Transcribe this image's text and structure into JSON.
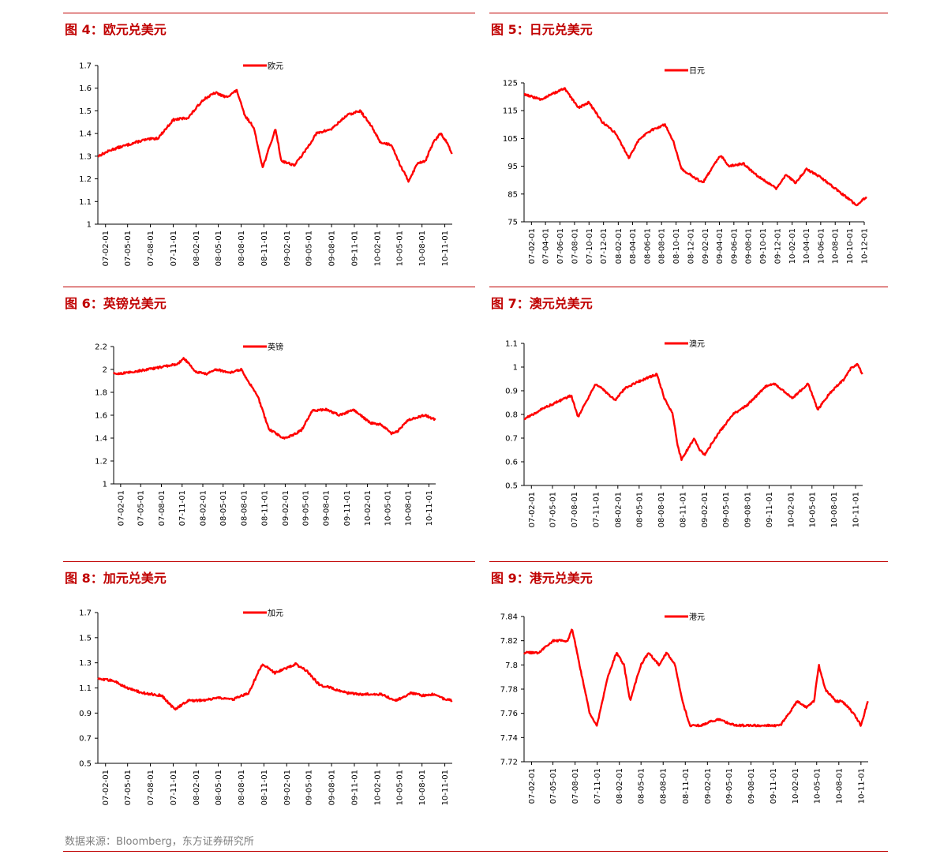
{
  "source_note": "数据来源：Bloomberg，东方证券研究所",
  "line_color": "#ff0000",
  "title_color": "#c00000",
  "chart_data": [
    {
      "type": "line",
      "title": "图 4：欧元兑美元",
      "legend": "欧元",
      "legend_position": "top-center",
      "ylim": [
        1,
        1.7
      ],
      "yticks": [
        "1",
        "1.1",
        "1.2",
        "1.3",
        "1.4",
        "1.5",
        "1.6",
        "1.7"
      ],
      "xticks": [
        "07-02-01",
        "07-05-01",
        "07-08-01",
        "07-11-01",
        "08-02-01",
        "08-05-01",
        "08-08-01",
        "08-11-01",
        "09-02-01",
        "09-05-01",
        "09-08-01",
        "09-11-01",
        "10-02-01",
        "10-05-01",
        "10-08-01",
        "10-11-01"
      ],
      "x": [
        "2007-01-01",
        "2007-03-01",
        "2007-05-01",
        "2007-07-01",
        "2007-09-01",
        "2007-11-01",
        "2008-01-01",
        "2008-03-01",
        "2008-04-20",
        "2008-06-01",
        "2008-07-15",
        "2008-08-15",
        "2008-09-20",
        "2008-10-27",
        "2008-12-18",
        "2009-01-10",
        "2009-03-04",
        "2009-04-15",
        "2009-06-01",
        "2009-08-01",
        "2009-10-01",
        "2009-11-25",
        "2010-01-10",
        "2010-02-15",
        "2010-04-01",
        "2010-05-01",
        "2010-06-07",
        "2010-07-15",
        "2010-08-15",
        "2010-09-15",
        "2010-10-15",
        "2010-11-10",
        "2010-11-30"
      ],
      "values": [
        1.3,
        1.33,
        1.35,
        1.37,
        1.38,
        1.46,
        1.47,
        1.55,
        1.58,
        1.56,
        1.59,
        1.48,
        1.43,
        1.25,
        1.42,
        1.28,
        1.26,
        1.32,
        1.4,
        1.42,
        1.48,
        1.5,
        1.43,
        1.36,
        1.35,
        1.27,
        1.19,
        1.27,
        1.28,
        1.36,
        1.4,
        1.36,
        1.31
      ]
    },
    {
      "type": "line",
      "title": "图 5：日元兑美元",
      "legend": "日元",
      "legend_position": "top-center",
      "ylim": [
        75,
        125
      ],
      "yticks": [
        "75",
        "85",
        "95",
        "105",
        "115",
        "125"
      ],
      "xticks": [
        "07-02-01",
        "07-04-01",
        "07-06-01",
        "07-08-01",
        "07-10-01",
        "07-12-01",
        "08-02-01",
        "08-04-01",
        "08-06-01",
        "08-08-01",
        "08-10-01",
        "08-12-01",
        "09-02-01",
        "09-04-01",
        "09-06-01",
        "09-08-01",
        "09-10-01",
        "09-12-01",
        "10-02-01",
        "10-04-01",
        "10-06-01",
        "10-08-01",
        "10-10-01",
        "10-12-01"
      ],
      "x": [
        "2007-01-01",
        "2007-03-10",
        "2007-06-20",
        "2007-08-17",
        "2007-10-01",
        "2007-11-25",
        "2008-01-20",
        "2008-03-17",
        "2008-05-01",
        "2008-06-20",
        "2008-08-15",
        "2008-09-20",
        "2008-10-24",
        "2008-12-17",
        "2009-01-21",
        "2009-04-06",
        "2009-05-10",
        "2009-07-10",
        "2009-09-01",
        "2009-11-27",
        "2010-01-08",
        "2010-02-15",
        "2010-04-02",
        "2010-06-01",
        "2010-08-15",
        "2010-09-15",
        "2010-10-30",
        "2010-12-10"
      ],
      "values": [
        121,
        119,
        123,
        116,
        118,
        111,
        107,
        98,
        105,
        108,
        110,
        104,
        94,
        91,
        89,
        99,
        95,
        96,
        92,
        87,
        92,
        89,
        94,
        91,
        86,
        84,
        81,
        84
      ]
    },
    {
      "type": "line",
      "title": "图 6：英镑兑美元",
      "legend": "英镑",
      "legend_position": "top-center",
      "ylim": [
        1,
        2.2
      ],
      "yticks": [
        "1",
        "1.2",
        "1.4",
        "1.6",
        "1.8",
        "2",
        "2.2"
      ],
      "xticks": [
        "07-02-01",
        "07-05-01",
        "07-08-01",
        "07-11-01",
        "08-02-01",
        "08-05-01",
        "08-08-01",
        "08-11-01",
        "09-02-01",
        "09-05-01",
        "09-08-01",
        "09-11-01",
        "10-02-01",
        "10-05-01",
        "10-08-01",
        "10-11-01"
      ],
      "x": [
        "2007-01-01",
        "2007-03-01",
        "2007-06-01",
        "2007-08-01",
        "2007-10-15",
        "2007-11-08",
        "2008-01-01",
        "2008-02-15",
        "2008-04-01",
        "2008-06-01",
        "2008-07-20",
        "2008-08-20",
        "2008-10-01",
        "2008-11-20",
        "2009-01-23",
        "2009-03-01",
        "2009-04-15",
        "2009-06-01",
        "2009-08-01",
        "2009-10-01",
        "2009-12-01",
        "2010-02-15",
        "2010-04-01",
        "2010-05-20",
        "2010-06-15",
        "2010-08-01",
        "2010-10-15",
        "2010-11-30"
      ],
      "values": [
        1.96,
        1.97,
        2.0,
        2.02,
        2.05,
        2.1,
        1.98,
        1.96,
        2.0,
        1.97,
        2.0,
        1.9,
        1.77,
        1.48,
        1.4,
        1.42,
        1.47,
        1.64,
        1.65,
        1.6,
        1.65,
        1.53,
        1.52,
        1.44,
        1.46,
        1.56,
        1.6,
        1.56
      ]
    },
    {
      "type": "line",
      "title": "图 7：澳元兑美元",
      "legend": "澳元",
      "legend_position": "top-center",
      "ylim": [
        0.5,
        1.1
      ],
      "yticks": [
        "0.5",
        "0.6",
        "0.7",
        "0.8",
        "0.9",
        "1",
        "1.1"
      ],
      "xticks": [
        "07-02-01",
        "07-05-01",
        "07-08-01",
        "07-11-01",
        "08-02-01",
        "08-05-01",
        "08-08-01",
        "08-11-01",
        "09-02-01",
        "09-05-01",
        "09-08-01",
        "09-11-01",
        "10-02-01",
        "10-05-01",
        "10-08-01",
        "10-11-01"
      ],
      "x": [
        "2007-01-01",
        "2007-04-01",
        "2007-07-20",
        "2007-08-17",
        "2007-10-31",
        "2008-01-22",
        "2008-03-01",
        "2008-05-01",
        "2008-07-15",
        "2008-08-15",
        "2008-09-20",
        "2008-10-10",
        "2008-10-27",
        "2008-12-20",
        "2009-01-10",
        "2009-02-02",
        "2009-04-01",
        "2009-06-01",
        "2009-08-01",
        "2009-10-20",
        "2009-11-25",
        "2010-01-10",
        "2010-02-08",
        "2010-04-15",
        "2010-05-25",
        "2010-07-15",
        "2010-09-15",
        "2010-10-15",
        "2010-11-10",
        "2010-11-30"
      ],
      "values": [
        0.78,
        0.83,
        0.88,
        0.79,
        0.93,
        0.86,
        0.91,
        0.94,
        0.97,
        0.87,
        0.8,
        0.67,
        0.61,
        0.7,
        0.65,
        0.63,
        0.72,
        0.8,
        0.84,
        0.92,
        0.93,
        0.89,
        0.87,
        0.93,
        0.82,
        0.89,
        0.95,
        1.0,
        1.01,
        0.97
      ]
    },
    {
      "type": "line",
      "title": "图 8：加元兑美元",
      "legend": "加元",
      "legend_position": "top-center",
      "ylim": [
        0.5,
        1.7
      ],
      "yticks": [
        "0.5",
        "0.7",
        "0.9",
        "1.1",
        "1.3",
        "1.5",
        "1.7"
      ],
      "xticks": [
        "07-02-01",
        "07-05-01",
        "07-08-01",
        "07-11-01",
        "08-02-01",
        "08-05-01",
        "08-08-01",
        "08-11-01",
        "09-02-01",
        "09-05-01",
        "09-08-01",
        "09-11-01",
        "10-02-01",
        "10-05-01",
        "10-08-01",
        "10-11-01"
      ],
      "x": [
        "2007-01-01",
        "2007-03-01",
        "2007-05-01",
        "2007-07-01",
        "2007-09-15",
        "2007-11-07",
        "2008-01-01",
        "2008-03-01",
        "2008-05-01",
        "2008-07-01",
        "2008-09-01",
        "2008-10-15",
        "2008-10-27",
        "2008-12-15",
        "2009-03-09",
        "2009-04-20",
        "2009-06-15",
        "2009-08-01",
        "2009-10-01",
        "2009-12-01",
        "2010-02-15",
        "2010-04-20",
        "2010-06-15",
        "2010-08-01",
        "2010-09-15",
        "2010-11-01",
        "2010-11-30"
      ],
      "values": [
        1.17,
        1.16,
        1.1,
        1.06,
        1.04,
        0.93,
        1.0,
        1.0,
        1.02,
        1.01,
        1.06,
        1.25,
        1.29,
        1.22,
        1.29,
        1.24,
        1.12,
        1.1,
        1.06,
        1.05,
        1.05,
        1.0,
        1.06,
        1.04,
        1.05,
        1.01,
        1.0
      ]
    },
    {
      "type": "line",
      "title": "图 9：港元兑美元",
      "legend": "港元",
      "legend_position": "top-center",
      "ylim": [
        7.72,
        7.84
      ],
      "yticks": [
        "7.72",
        "7.74",
        "7.76",
        "7.78",
        "7.8",
        "7.82",
        "7.84"
      ],
      "xticks": [
        "07-02-01",
        "07-05-01",
        "07-08-01",
        "07-11-01",
        "08-02-01",
        "08-05-01",
        "08-08-01",
        "08-11-01",
        "09-02-01",
        "09-05-01",
        "09-08-01",
        "09-11-01",
        "10-02-01",
        "10-05-01",
        "10-08-01",
        "10-11-01"
      ],
      "x": [
        "2007-01-01",
        "2007-03-01",
        "2007-05-01",
        "2007-07-01",
        "2007-07-20",
        "2007-08-30",
        "2007-10-01",
        "2007-10-31",
        "2007-12-15",
        "2008-01-20",
        "2008-02-20",
        "2008-03-17",
        "2008-04-15",
        "2008-05-01",
        "2008-06-01",
        "2008-07-15",
        "2008-08-15",
        "2008-09-20",
        "2008-10-20",
        "2008-11-20",
        "2009-01-01",
        "2009-03-15",
        "2009-06-01",
        "2009-09-01",
        "2009-12-01",
        "2010-01-05",
        "2010-02-10",
        "2010-03-20",
        "2010-04-20",
        "2010-05-10",
        "2010-06-05",
        "2010-07-20",
        "2010-08-15",
        "2010-10-01",
        "2010-11-01",
        "2010-11-30"
      ],
      "values": [
        7.81,
        7.81,
        7.82,
        7.82,
        7.83,
        7.79,
        7.76,
        7.75,
        7.79,
        7.81,
        7.8,
        7.77,
        7.79,
        7.8,
        7.81,
        7.8,
        7.81,
        7.8,
        7.77,
        7.75,
        7.75,
        7.755,
        7.75,
        7.75,
        7.75,
        7.76,
        7.77,
        7.765,
        7.77,
        7.8,
        7.78,
        7.77,
        7.77,
        7.76,
        7.75,
        7.77
      ]
    }
  ]
}
